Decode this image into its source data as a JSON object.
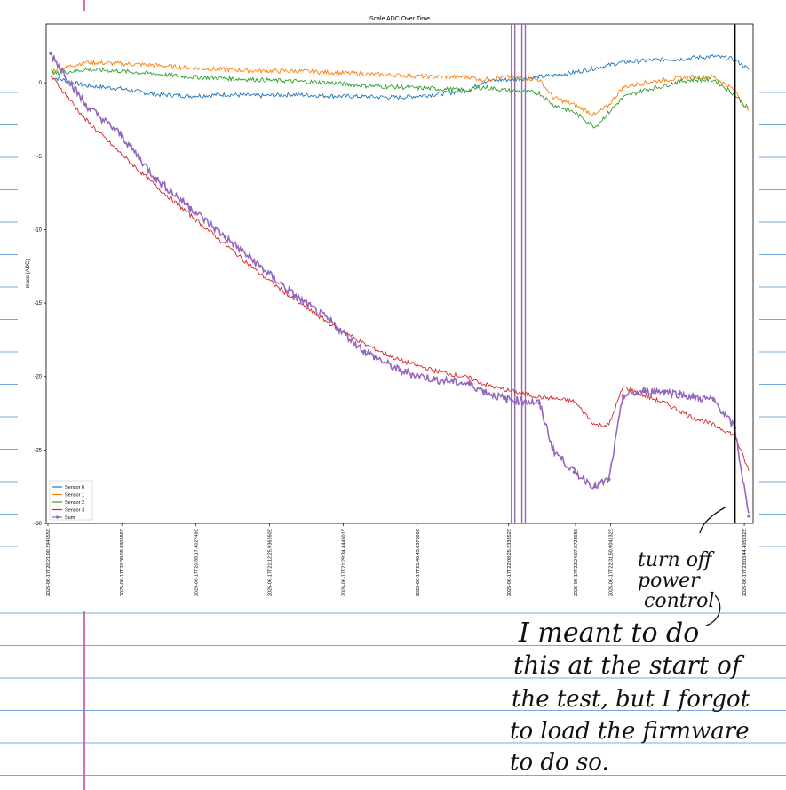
{
  "chart_data": {
    "type": "line",
    "title": "Scale ADC Over Time",
    "ylabel": "mass (ADC)",
    "xlabel": "",
    "ylim": [
      -30,
      4
    ],
    "y_ticks": [
      0,
      -5,
      -10,
      -15,
      -20,
      -25,
      -30
    ],
    "grid": false,
    "legend_placement": "lower-left",
    "x_tick_labels": [
      "2025-06-17T20:21:00.294655Z",
      "2025-06-17T20:38:08.890686Z",
      "2025-06-17T20:55:17.402748Z",
      "2025-06-17T21:12:25.936260Z",
      "2025-06-17T21:29:34.444601Z",
      "2025-06-17T21:46:43.037606Z",
      "2025-06-17T22:08:25.233852Z",
      "2025-06-17T22:24:07.872308Z",
      "2025-06-17T22:31:50.904132Z",
      "2025-06-17T23:03:44.405932Z"
    ],
    "x": [
      0,
      0.05,
      0.1,
      0.15,
      0.2,
      0.25,
      0.3,
      0.35,
      0.4,
      0.45,
      0.5,
      0.55,
      0.6,
      0.62,
      0.65,
      0.68,
      0.7,
      0.72,
      0.75,
      0.78,
      0.8,
      0.82,
      0.85,
      0.88,
      0.9,
      0.92,
      0.95,
      0.98,
      1.0
    ],
    "series": [
      {
        "name": "Sensor 0",
        "color": "#1f77b4",
        "values": [
          0.4,
          -0.2,
          -0.4,
          -0.8,
          -0.9,
          -0.8,
          -0.9,
          -0.8,
          -0.9,
          -0.95,
          -1.0,
          -0.8,
          -0.5,
          0.1,
          0.2,
          0.3,
          0.4,
          0.5,
          0.7,
          1.0,
          1.2,
          1.4,
          1.5,
          1.6,
          1.6,
          1.7,
          1.8,
          1.6,
          0.9
        ]
      },
      {
        "name": "Sensor 1",
        "color": "#ff7f0e",
        "values": [
          0.8,
          1.4,
          1.3,
          1.2,
          1.0,
          0.9,
          0.8,
          0.8,
          0.7,
          0.6,
          0.5,
          0.4,
          0.4,
          0.2,
          0.4,
          0.3,
          0.2,
          -1.0,
          -1.5,
          -2.2,
          -1.5,
          -0.3,
          0.0,
          0.2,
          0.3,
          0.4,
          0.4,
          -0.5,
          -2.0
        ]
      },
      {
        "name": "Sensor 2",
        "color": "#2ca02c",
        "values": [
          0.6,
          0.9,
          0.8,
          0.6,
          0.4,
          0.3,
          0.2,
          0.1,
          0.0,
          -0.2,
          -0.3,
          -0.4,
          -0.5,
          -0.3,
          -0.5,
          -0.6,
          -0.7,
          -1.5,
          -2.0,
          -3.0,
          -2.0,
          -1.0,
          -0.5,
          -0.2,
          0.1,
          0.2,
          0.2,
          -0.8,
          -1.8
        ]
      },
      {
        "name": "Sensor 3",
        "color": "#d62728",
        "values": [
          0.5,
          -2.5,
          -4.8,
          -7.0,
          -9.0,
          -11.0,
          -13.0,
          -14.8,
          -16.4,
          -17.8,
          -18.9,
          -19.6,
          -20.1,
          -20.5,
          -20.9,
          -21.2,
          -21.4,
          -21.5,
          -21.7,
          -23.3,
          -23.3,
          -20.7,
          -21.3,
          -21.8,
          -22.3,
          -22.8,
          -23.3,
          -24.0,
          -26.4
        ]
      },
      {
        "name": "Sum",
        "color": "#9467bd",
        "marker": "circle",
        "values": [
          2.0,
          -1.5,
          -3.5,
          -6.5,
          -8.5,
          -10.5,
          -12.5,
          -14.5,
          -16.2,
          -18.3,
          -19.6,
          -20.2,
          -20.5,
          -21.0,
          -21.5,
          -21.7,
          -21.8,
          -25.0,
          -26.5,
          -27.5,
          -27.0,
          -21.3,
          -21.0,
          -21.0,
          -21.2,
          -21.4,
          -21.6,
          -23.5,
          -29.5
        ]
      }
    ],
    "spikes": [
      {
        "x": 0.66,
        "y_from": 4,
        "y_to": -30,
        "color": "#9467bd"
      },
      {
        "x": 0.665,
        "y_from": 4,
        "y_to": -30,
        "color": "#9467bd"
      },
      {
        "x": 0.675,
        "y_from": 4,
        "y_to": -30,
        "color": "#9467bd"
      },
      {
        "x": 0.68,
        "y_from": 4,
        "y_to": -30,
        "color": "#9467bd"
      }
    ],
    "marker_line_x": 0.98
  },
  "annotations": {
    "turn_off_note": [
      "turn off",
      "power",
      "control"
    ],
    "handwritten_note": [
      "I meant to do",
      "this at the start of",
      "the test, but I forgot",
      "to load the firmware",
      "to do so."
    ]
  },
  "colors": {
    "notebook_rule": "#4a8fd4",
    "margin_line": "#d93a9a",
    "marker_line": "#000000"
  }
}
